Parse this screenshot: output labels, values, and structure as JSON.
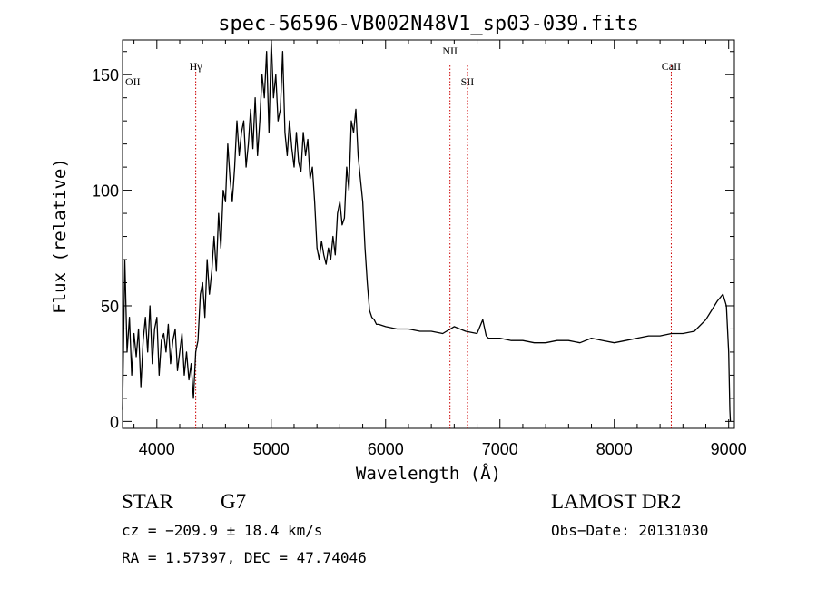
{
  "chart_data": {
    "type": "line",
    "title": "spec-56596-VB002N48V1_sp03-039.fits",
    "xlabel": "Wavelength (Å)",
    "ylabel": "Flux (relative)",
    "xlim": [
      3700,
      9050
    ],
    "ylim": [
      -3,
      165
    ],
    "xticks": [
      4000,
      5000,
      6000,
      7000,
      8000,
      9000
    ],
    "yticks": [
      0,
      50,
      100,
      150
    ],
    "grid": false,
    "line_color": "#000000",
    "marker_color": "#cc0000",
    "spectral_lines": [
      {
        "label": "OII",
        "x": 3727
      },
      {
        "label": "Hγ",
        "x": 4340
      },
      {
        "label": "NII",
        "x": 6563
      },
      {
        "label": "SII",
        "x": 6716
      },
      {
        "label": "CaII",
        "x": 8498
      }
    ],
    "series": [
      {
        "x": [
          3700,
          3720,
          3740,
          3760,
          3780,
          3800,
          3820,
          3840,
          3860,
          3880,
          3900,
          3920,
          3940,
          3960,
          3980,
          4000,
          4020,
          4040,
          4060,
          4080,
          4100,
          4120,
          4140,
          4160,
          4180,
          4200,
          4220,
          4240,
          4260,
          4280,
          4300,
          4320,
          4340,
          4360,
          4380,
          4400,
          4420,
          4440,
          4460,
          4480,
          4500,
          4520,
          4540,
          4560,
          4580,
          4600,
          4620,
          4640,
          4660,
          4680,
          4700,
          4720,
          4740,
          4760,
          4780,
          4800,
          4820,
          4840,
          4860,
          4880,
          4900,
          4920,
          4940,
          4960,
          4980,
          5000,
          5020,
          5040,
          5060,
          5080,
          5100,
          5120,
          5140,
          5160,
          5180,
          5200,
          5220,
          5240,
          5260,
          5280,
          5300,
          5320,
          5340,
          5360,
          5380,
          5400,
          5420,
          5440,
          5460,
          5480,
          5500,
          5520,
          5540,
          5560,
          5580,
          5600,
          5620,
          5640,
          5660,
          5680,
          5700,
          5720,
          5740,
          5760,
          5780,
          5800,
          5820,
          5840,
          5860,
          5880,
          5900,
          5920,
          5940,
          6000,
          6100,
          6200,
          6300,
          6400,
          6500,
          6600,
          6700,
          6800,
          6850,
          6880,
          6900,
          7000,
          7100,
          7200,
          7300,
          7400,
          7500,
          7600,
          7700,
          7800,
          7900,
          8000,
          8100,
          8200,
          8300,
          8400,
          8500,
          8600,
          8700,
          8800,
          8850,
          8900,
          8950,
          8980,
          9000,
          9010,
          9015
        ],
        "y": [
          5,
          70,
          30,
          45,
          20,
          38,
          28,
          40,
          15,
          35,
          45,
          30,
          50,
          25,
          40,
          45,
          20,
          35,
          38,
          30,
          42,
          25,
          35,
          40,
          22,
          30,
          38,
          20,
          30,
          18,
          25,
          10,
          30,
          35,
          55,
          60,
          45,
          70,
          55,
          65,
          80,
          65,
          90,
          75,
          100,
          95,
          120,
          105,
          95,
          110,
          130,
          115,
          125,
          130,
          110,
          120,
          135,
          118,
          140,
          115,
          130,
          150,
          140,
          160,
          125,
          165,
          140,
          150,
          130,
          135,
          160,
          125,
          115,
          130,
          118,
          110,
          125,
          112,
          108,
          125,
          115,
          122,
          105,
          110,
          95,
          75,
          70,
          78,
          72,
          68,
          75,
          70,
          80,
          72,
          90,
          95,
          85,
          88,
          110,
          100,
          130,
          125,
          135,
          115,
          105,
          95,
          75,
          60,
          48,
          45,
          44,
          42,
          42,
          41,
          40,
          40,
          39,
          39,
          38,
          41,
          39,
          38,
          44,
          37,
          36,
          36,
          35,
          35,
          34,
          34,
          35,
          35,
          34,
          36,
          35,
          34,
          35,
          36,
          37,
          37,
          38,
          38,
          39,
          44,
          48,
          52,
          55,
          50,
          30,
          5,
          0
        ]
      }
    ]
  },
  "footer": {
    "star_label": "STAR",
    "spectral_type": "G7",
    "survey": "LAMOST DR2",
    "cz": "cz = −209.9 ± 18.4 km/s",
    "obs_date": "Obs−Date: 20131030",
    "coords": "RA =   1.57397, DEC =  47.74046"
  }
}
